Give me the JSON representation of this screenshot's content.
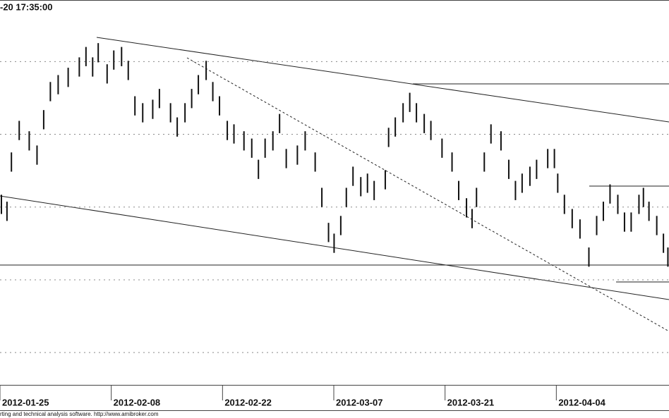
{
  "chart_data": {
    "type": "ohlc",
    "title": "-20 17:35:00",
    "footer": "rting and technical analysis software. http://www.amibroker.com",
    "color": "#111111",
    "xlim": [
      0,
      60
    ],
    "ylim": [
      0,
      100
    ],
    "xticks": [
      {
        "value": 0,
        "label": "2012-01-25"
      },
      {
        "value": 10,
        "label": "2012-02-08"
      },
      {
        "value": 20,
        "label": "2012-02-22"
      },
      {
        "value": 30,
        "label": "2012-03-07"
      },
      {
        "value": 40,
        "label": "2012-03-21"
      },
      {
        "value": 50,
        "label": "2012-04-04"
      }
    ],
    "grid": [
      8.4,
      27.3,
      46.2,
      65.1,
      84.0
    ],
    "x": [
      0,
      0.5,
      0.9,
      1.6,
      2.5,
      3.2,
      3.8,
      4.4,
      5.1,
      6.0,
      7.0,
      7.6,
      8.2,
      8.7,
      9.5,
      10.1,
      10.8,
      11.4,
      12.0,
      12.7,
      13.6,
      14.2,
      15.2,
      15.8,
      16.5,
      17.1,
      17.7,
      18.4,
      19.0,
      19.6,
      20.3,
      20.9,
      21.8,
      22.5,
      23.1,
      23.7,
      24.4,
      25.0,
      25.6,
      26.6,
      27.3,
      28.2,
      28.8,
      29.4,
      29.9,
      30.5,
      31.0,
      31.6,
      32.3,
      32.9,
      33.5,
      34.5,
      34.8,
      35.4,
      36.1,
      36.7,
      37.3,
      38.0,
      38.6,
      39.6,
      40.5,
      41.1,
      41.8,
      42.3,
      42.7,
      43.4,
      44.0,
      44.9,
      45.6,
      46.2,
      46.8,
      47.5,
      48.1,
      49.1,
      49.7,
      50.0,
      50.6,
      51.3,
      52.0,
      52.8,
      53.5,
      54.1,
      54.7,
      55.4,
      56.0,
      56.6,
      57.3,
      57.7,
      58.2,
      58.9,
      59.5,
      59.9
    ],
    "high": [
      49.4,
      47.6,
      60.4,
      68.6,
      65.9,
      62.2,
      71.4,
      78.7,
      80.5,
      82.4,
      85.1,
      87.8,
      85.1,
      88.8,
      83.3,
      86.9,
      87.8,
      84.2,
      75.0,
      73.2,
      74.1,
      76.9,
      73.2,
      69.5,
      73.2,
      76.9,
      80.5,
      84.2,
      78.7,
      75.0,
      68.6,
      67.7,
      65.9,
      64.0,
      58.5,
      64.0,
      65.9,
      70.4,
      61.3,
      62.2,
      65.9,
      60.4,
      51.2,
      42.1,
      39.3,
      43.9,
      51.2,
      56.7,
      54.0,
      54.9,
      53.0,
      55.8,
      66.8,
      69.5,
      73.2,
      75.9,
      73.2,
      70.4,
      68.6,
      64.0,
      60.4,
      53.0,
      48.5,
      45.7,
      51.2,
      60.4,
      67.7,
      65.9,
      58.5,
      53.0,
      54.9,
      56.7,
      58.5,
      61.3,
      61.3,
      54.9,
      49.4,
      45.7,
      43.0,
      35.7,
      43.9,
      47.6,
      52.1,
      49.4,
      44.8,
      44.8,
      49.4,
      51.2,
      47.6,
      43.9,
      39.3,
      35.7
    ],
    "low": [
      44.4,
      42.6,
      55.4,
      63.6,
      60.9,
      57.2,
      66.4,
      73.7,
      75.5,
      77.4,
      80.1,
      82.8,
      80.1,
      83.8,
      78.3,
      81.9,
      82.8,
      79.2,
      70.0,
      68.2,
      69.1,
      71.9,
      68.2,
      64.5,
      68.2,
      71.9,
      75.5,
      79.2,
      73.7,
      70.0,
      63.6,
      62.7,
      60.9,
      59.0,
      53.5,
      59.0,
      60.9,
      65.4,
      56.3,
      57.2,
      60.9,
      55.4,
      46.2,
      37.1,
      34.3,
      38.9,
      46.2,
      51.7,
      49.0,
      49.9,
      48.0,
      50.8,
      61.8,
      64.5,
      68.2,
      70.9,
      68.2,
      65.4,
      63.6,
      59.0,
      55.4,
      48.0,
      43.5,
      40.7,
      46.2,
      55.4,
      62.7,
      60.9,
      53.5,
      48.0,
      49.9,
      51.7,
      53.5,
      56.3,
      56.3,
      49.9,
      44.4,
      40.7,
      38.0,
      30.7,
      38.9,
      42.6,
      47.1,
      44.4,
      39.8,
      39.8,
      44.4,
      46.2,
      42.6,
      38.9,
      34.3,
      30.7
    ]
  }
}
